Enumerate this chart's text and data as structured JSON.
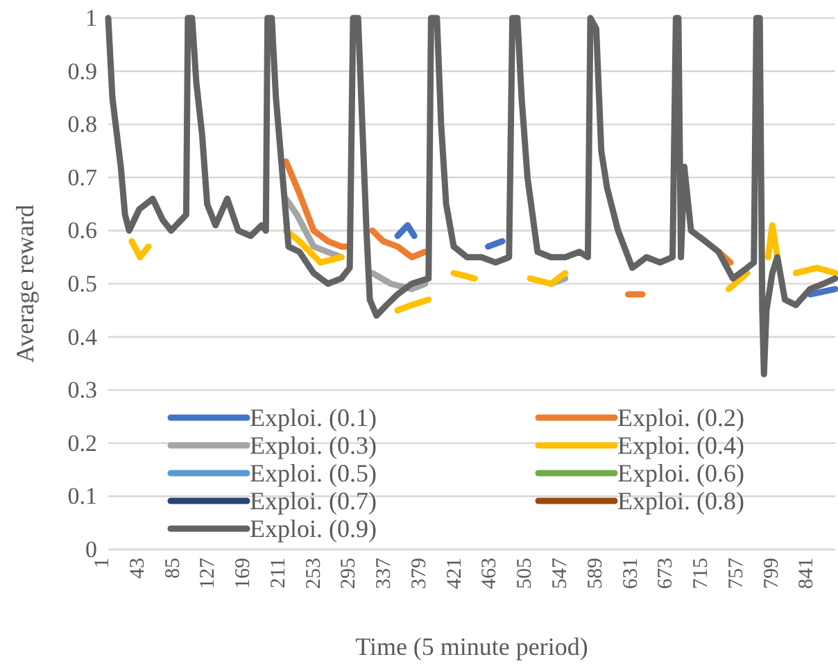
{
  "chart_data": {
    "type": "line",
    "xlabel": "Time (5 minute period)",
    "ylabel": "Average reward",
    "xlim": [
      1,
      868
    ],
    "xticks": [
      1,
      43,
      85,
      127,
      169,
      211,
      253,
      295,
      337,
      379,
      421,
      463,
      505,
      547,
      589,
      631,
      673,
      715,
      757,
      799,
      841
    ],
    "ylim": [
      0,
      1
    ],
    "yticks": [
      0,
      0.1,
      0.2,
      0.3,
      0.4,
      0.5,
      0.6,
      0.7,
      0.8,
      0.9,
      1
    ],
    "grid": "y",
    "legend": "bottom",
    "marker": "none",
    "line_style": "solid",
    "x": [
      1,
      6,
      16,
      21,
      26,
      38,
      54,
      66,
      76,
      88,
      94,
      96,
      101,
      106,
      113,
      119,
      129,
      143,
      156,
      171,
      184,
      189,
      191,
      196,
      201,
      208,
      216,
      229,
      246,
      263,
      279,
      289,
      293,
      299,
      304,
      309,
      313,
      321,
      333,
      346,
      363,
      383,
      386,
      393,
      398,
      404,
      413,
      429,
      446,
      463,
      479,
      483,
      489,
      494,
      501,
      513,
      529,
      546,
      563,
      573,
      576,
      583,
      589,
      596,
      609,
      626,
      643,
      659,
      674,
      678,
      681,
      684,
      688,
      696,
      713,
      729,
      746,
      763,
      771,
      774,
      778,
      781,
      783,
      786,
      793,
      799,
      808,
      821,
      838,
      854,
      868
    ],
    "series": [
      {
        "name": "Exploi. (0.1)",
        "color": "#4472c4",
        "x": [
          346,
          358,
          366,
          null,
          454,
          471,
          null,
          838,
          868
        ],
        "values": [
          0.59,
          0.61,
          0.59,
          null,
          0.57,
          0.58,
          null,
          0.48,
          0.49
        ]
      },
      {
        "name": "Exploi. (0.2)",
        "color": "#ed7d31",
        "x": [
          213,
          221,
          229,
          246,
          263,
          279,
          289,
          null,
          316,
          329,
          346,
          363,
          379,
          null,
          621,
          638,
          null,
          729,
          743
        ],
        "values": [
          0.73,
          0.7,
          0.67,
          0.6,
          0.58,
          0.57,
          0.57,
          null,
          0.6,
          0.58,
          0.57,
          0.55,
          0.56,
          null,
          0.48,
          0.48,
          null,
          0.56,
          0.54
        ]
      },
      {
        "name": "Exploi. (0.3)",
        "color": "#a5a5a5",
        "x": [
          213,
          226,
          246,
          279,
          null,
          316,
          338,
          363,
          379,
          null,
          529,
          546
        ],
        "values": [
          0.66,
          0.63,
          0.57,
          0.55,
          null,
          0.52,
          0.5,
          0.49,
          0.5,
          null,
          0.5,
          0.51
        ]
      },
      {
        "name": "Exploi. (0.4)",
        "color": "#ffc000",
        "x": [
          29,
          39,
          49,
          null,
          213,
          229,
          254,
          279,
          null,
          346,
          363,
          383,
          null,
          413,
          438,
          null,
          504,
          529,
          546,
          null,
          741,
          763,
          null,
          788,
          793,
          799,
          null,
          821,
          846,
          868
        ],
        "values": [
          0.58,
          0.55,
          0.57,
          null,
          0.6,
          0.58,
          0.54,
          0.55,
          null,
          0.45,
          0.46,
          0.47,
          null,
          0.52,
          0.51,
          null,
          0.51,
          0.5,
          0.52,
          null,
          0.49,
          0.52,
          null,
          0.55,
          0.61,
          0.55,
          null,
          0.52,
          0.53,
          0.52
        ]
      },
      {
        "name": "Exploi. (0.5)",
        "color": "#5b9bd5",
        "values": [
          null,
          null,
          null,
          null,
          null,
          null,
          null,
          null,
          null,
          null,
          null,
          null,
          null,
          null,
          null,
          null,
          null,
          null,
          null,
          null,
          null,
          null,
          null,
          null,
          null,
          null,
          null,
          null,
          null,
          null,
          null,
          null,
          null,
          null,
          null,
          null,
          null,
          null,
          null,
          null,
          null,
          null,
          null,
          null,
          null,
          null,
          null,
          null,
          null,
          null,
          null,
          null,
          null,
          null,
          null,
          null,
          null,
          null,
          null,
          null,
          null,
          null,
          null,
          null,
          null,
          null,
          null,
          null,
          null,
          null,
          null,
          null,
          null,
          null,
          null,
          null,
          null,
          null,
          null,
          null,
          null,
          null,
          null,
          null,
          null,
          null,
          null,
          null,
          null,
          null,
          null
        ]
      },
      {
        "name": "Exploi. (0.6)",
        "color": "#70ad47",
        "values": [
          null,
          null,
          null,
          null,
          null,
          null,
          null,
          null,
          null,
          null,
          null,
          null,
          null,
          null,
          null,
          null,
          null,
          null,
          null,
          null,
          null,
          null,
          null,
          null,
          null,
          null,
          null,
          null,
          null,
          null,
          null,
          null,
          null,
          null,
          null,
          null,
          null,
          null,
          null,
          null,
          null,
          null,
          null,
          null,
          null,
          null,
          null,
          null,
          null,
          null,
          null,
          null,
          null,
          null,
          null,
          null,
          null,
          null,
          null,
          null,
          null,
          null,
          null,
          null,
          null,
          null,
          null,
          null,
          null,
          null,
          null,
          null,
          null,
          null,
          null,
          null,
          null,
          null,
          null,
          null,
          null,
          null,
          null,
          null,
          null,
          null,
          null,
          null,
          null,
          null,
          null
        ]
      },
      {
        "name": "Exploi. (0.7)",
        "color": "#264478",
        "values": [
          null,
          null,
          null,
          null,
          null,
          null,
          null,
          null,
          null,
          null,
          null,
          null,
          null,
          null,
          null,
          null,
          null,
          null,
          null,
          null,
          null,
          null,
          null,
          null,
          null,
          null,
          null,
          null,
          null,
          null,
          null,
          null,
          null,
          null,
          null,
          null,
          null,
          null,
          null,
          null,
          null,
          null,
          null,
          null,
          null,
          null,
          null,
          null,
          null,
          null,
          null,
          null,
          null,
          null,
          null,
          null,
          null,
          null,
          null,
          null,
          null,
          null,
          null,
          null,
          null,
          null,
          null,
          null,
          null,
          null,
          null,
          null,
          null,
          null,
          null,
          null,
          null,
          null,
          null,
          null,
          null,
          null,
          null,
          null,
          null,
          null,
          null,
          null,
          null,
          null,
          null
        ]
      },
      {
        "name": "Exploi. (0.8)",
        "color": "#9e480e",
        "values": [
          null,
          null,
          null,
          null,
          null,
          null,
          null,
          null,
          null,
          null,
          null,
          null,
          null,
          null,
          null,
          null,
          null,
          null,
          null,
          null,
          null,
          null,
          null,
          null,
          null,
          null,
          null,
          null,
          null,
          null,
          null,
          null,
          null,
          null,
          null,
          null,
          null,
          null,
          null,
          null,
          null,
          null,
          null,
          null,
          null,
          null,
          null,
          null,
          null,
          null,
          null,
          null,
          null,
          null,
          null,
          null,
          null,
          null,
          null,
          null,
          null,
          null,
          null,
          null,
          null,
          null,
          null,
          null,
          null,
          null,
          null,
          null,
          null,
          null,
          null,
          null,
          null,
          null,
          null,
          null,
          null,
          null,
          null,
          null,
          null,
          null,
          null,
          null,
          null,
          null,
          null
        ]
      },
      {
        "name": "Exploi. (0.9)",
        "color": "#636363",
        "values": [
          1,
          0.85,
          0.72,
          0.63,
          0.6,
          0.64,
          0.66,
          0.62,
          0.6,
          0.62,
          0.63,
          1,
          1,
          0.88,
          0.78,
          0.65,
          0.61,
          0.66,
          0.6,
          0.59,
          0.61,
          0.6,
          1,
          1,
          0.85,
          0.72,
          0.57,
          0.56,
          0.52,
          0.5,
          0.51,
          0.53,
          1,
          1,
          0.8,
          0.6,
          0.47,
          0.44,
          0.46,
          0.48,
          0.5,
          0.51,
          1,
          1,
          0.8,
          0.65,
          0.57,
          0.55,
          0.55,
          0.54,
          0.55,
          1,
          1,
          0.85,
          0.7,
          0.56,
          0.55,
          0.55,
          0.56,
          0.55,
          1,
          0.98,
          0.75,
          0.68,
          0.6,
          0.53,
          0.55,
          0.54,
          0.55,
          1,
          1,
          0.55,
          0.72,
          0.6,
          0.58,
          0.56,
          0.51,
          0.53,
          0.54,
          1,
          1,
          0.45,
          0.33,
          0.45,
          0.52,
          0.55,
          0.47,
          0.46,
          0.49,
          0.5,
          0.51
        ]
      }
    ]
  }
}
